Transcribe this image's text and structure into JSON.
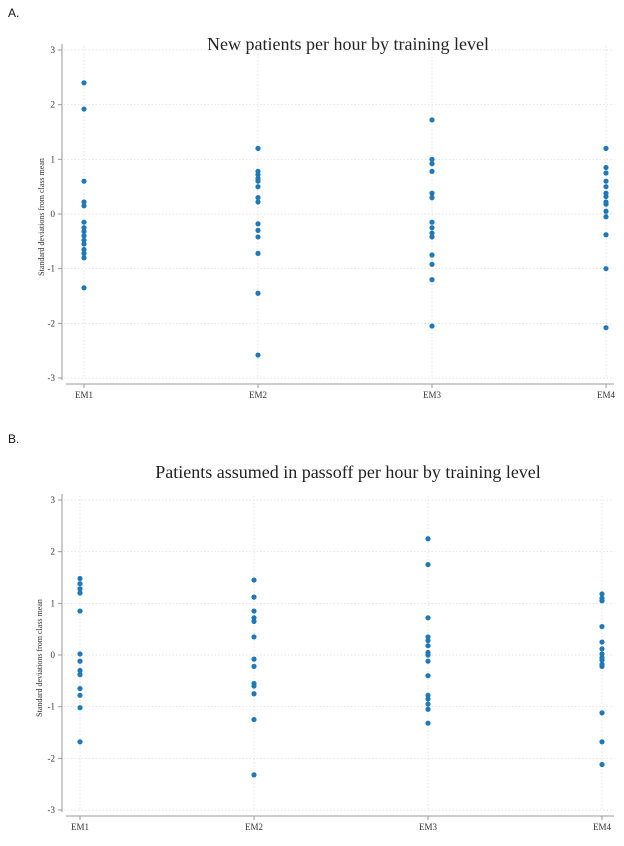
{
  "panels": {
    "a": {
      "label": "A."
    },
    "b": {
      "label": "B."
    }
  },
  "chart_data": [
    {
      "type": "scatter",
      "title": "New patients per hour by training level",
      "xlabel": "",
      "ylabel": "Standard deviations from class mean",
      "categories": [
        "EM1",
        "EM2",
        "EM3",
        "EM4"
      ],
      "ylim": [
        -3,
        3
      ],
      "yticks": [
        3,
        2,
        1,
        0,
        -1,
        -2,
        -3
      ],
      "grid": true,
      "color": "#1f78b8",
      "series": [
        {
          "category": "EM1",
          "values": [
            2.4,
            1.92,
            0.6,
            0.22,
            0.15,
            -0.15,
            -0.25,
            -0.32,
            -0.4,
            -0.48,
            -0.55,
            -0.65,
            -0.72,
            -0.8,
            -1.35
          ]
        },
        {
          "category": "EM2",
          "values": [
            1.2,
            0.78,
            0.72,
            0.65,
            0.6,
            0.5,
            0.3,
            0.22,
            -0.18,
            -0.3,
            -0.42,
            -0.72,
            -1.45,
            -2.58
          ]
        },
        {
          "category": "EM3",
          "values": [
            1.72,
            1.0,
            0.92,
            0.78,
            0.38,
            0.3,
            -0.15,
            -0.25,
            -0.35,
            -0.42,
            -0.75,
            -0.92,
            -1.2,
            -2.05
          ]
        },
        {
          "category": "EM4",
          "values": [
            1.2,
            0.85,
            0.75,
            0.6,
            0.5,
            0.38,
            0.32,
            0.22,
            0.18,
            0.05,
            -0.05,
            -0.38,
            -1.0,
            -2.08
          ]
        }
      ]
    },
    {
      "type": "scatter",
      "title": "Patients assumed in passoff per hour by training level",
      "xlabel": "",
      "ylabel": "Standard deviations from class mean",
      "categories": [
        "EM1",
        "EM2",
        "EM3",
        "EM4"
      ],
      "ylim": [
        -3,
        3
      ],
      "yticks": [
        3,
        2,
        1,
        0,
        -1,
        -2,
        -3
      ],
      "grid": true,
      "color": "#1f78b8",
      "series": [
        {
          "category": "EM1",
          "values": [
            1.48,
            1.38,
            1.28,
            1.2,
            0.85,
            0.02,
            -0.12,
            -0.3,
            -0.38,
            -0.65,
            -0.78,
            -1.02,
            -1.68
          ]
        },
        {
          "category": "EM2",
          "values": [
            1.45,
            1.12,
            0.85,
            0.72,
            0.65,
            0.35,
            -0.08,
            -0.22,
            -0.55,
            -0.6,
            -0.75,
            -1.25,
            -2.32
          ]
        },
        {
          "category": "EM3",
          "values": [
            2.25,
            1.75,
            0.72,
            0.35,
            0.28,
            0.18,
            0.05,
            0.0,
            -0.12,
            -0.4,
            -0.78,
            -0.85,
            -0.95,
            -1.05,
            -1.32
          ]
        },
        {
          "category": "EM4",
          "values": [
            1.18,
            1.1,
            1.05,
            0.55,
            0.25,
            0.12,
            0.02,
            -0.05,
            -0.1,
            -0.18,
            -0.22,
            -1.12,
            -1.68,
            -2.12
          ]
        }
      ]
    }
  ]
}
